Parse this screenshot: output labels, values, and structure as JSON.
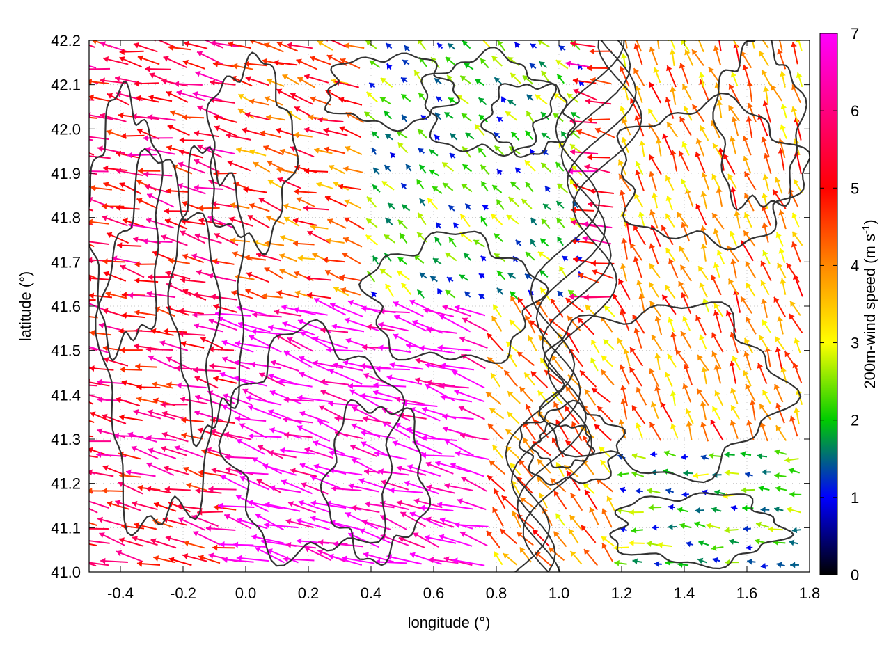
{
  "chart_data": {
    "type": "vector-field",
    "xlabel": "longitude (°)",
    "ylabel": "latitude (°)",
    "xlim": [
      -0.5,
      1.8
    ],
    "ylim": [
      41.0,
      42.2
    ],
    "x_ticks": [
      -0.4,
      -0.2,
      0.0,
      0.2,
      0.4,
      0.6,
      0.8,
      1.0,
      1.2,
      1.4,
      1.6,
      1.8
    ],
    "x_tick_labels": [
      "-0.4",
      "-0.2",
      "0.0",
      "0.2",
      "0.4",
      "0.6",
      "0.8",
      "1.0",
      "1.2",
      "1.4",
      "1.6",
      "1.8"
    ],
    "y_ticks": [
      41.0,
      41.1,
      41.2,
      41.3,
      41.4,
      41.5,
      41.6,
      41.7,
      41.8,
      41.9,
      42.0,
      42.1,
      42.2
    ],
    "y_tick_labels": [
      "41.0",
      "41.1",
      "41.2",
      "41.3",
      "41.4",
      "41.5",
      "41.6",
      "41.7",
      "41.8",
      "41.9",
      "42.0",
      "42.1",
      "42.2"
    ],
    "grid": true,
    "colorbar": {
      "label": "200m-wind speed (m s",
      "label_superscript": "-1",
      "label_suffix": ")",
      "range": [
        0,
        7
      ],
      "ticks": [
        0,
        1,
        2,
        3,
        4,
        5,
        6,
        7
      ],
      "tick_labels": [
        "0",
        "1",
        "2",
        "3",
        "4",
        "5",
        "6",
        "7"
      ],
      "colors": [
        "#000000",
        "#0000ff",
        "#00cc00",
        "#ffff00",
        "#ff8800",
        "#ff0000",
        "#ff00ff"
      ]
    },
    "contour_color": "#333333",
    "wind_regions": [
      {
        "lon": [
          -0.5,
          0.0
        ],
        "lat": [
          41.0,
          42.2
        ],
        "u": -1.0,
        "v": 0.22,
        "speed": 5.5
      },
      {
        "lon": [
          0.0,
          0.8
        ],
        "lat": [
          41.0,
          41.6
        ],
        "u": -1.0,
        "v": 0.28,
        "speed": 7.0
      },
      {
        "lon": [
          0.0,
          0.4
        ],
        "lat": [
          41.6,
          42.2
        ],
        "u": -1.0,
        "v": 0.3,
        "speed": 4.5
      },
      {
        "lon": [
          0.4,
          1.1
        ],
        "lat": [
          41.6,
          42.2
        ],
        "u": -0.3,
        "v": 0.3,
        "speed": 2.0
      },
      {
        "lon": [
          0.8,
          1.2
        ],
        "lat": [
          41.0,
          41.6
        ],
        "u": -0.5,
        "v": 0.6,
        "speed": 4.0
      },
      {
        "lon": [
          1.2,
          1.8
        ],
        "lat": [
          41.3,
          42.2
        ],
        "u": -0.4,
        "v": 1.0,
        "speed": 4.0
      },
      {
        "lon": [
          1.2,
          1.8
        ],
        "lat": [
          41.0,
          41.3
        ],
        "u": -1.0,
        "v": 0.1,
        "speed": 2.0
      }
    ]
  }
}
